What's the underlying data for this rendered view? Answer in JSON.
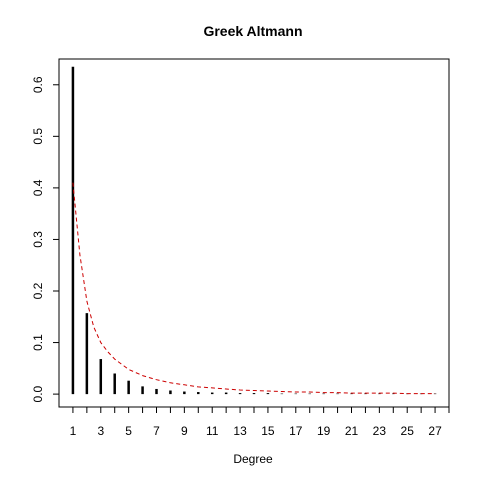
{
  "chart_data": {
    "type": "bar",
    "title": "Greek Altmann",
    "xlabel": "Degree",
    "ylabel": "",
    "xlim": [
      0,
      28
    ],
    "ylim": [
      -0.025,
      0.65
    ],
    "x_ticks": [
      1,
      2,
      3,
      4,
      5,
      6,
      7,
      8,
      9,
      10,
      11,
      12,
      13,
      14,
      15,
      16,
      17,
      18,
      19,
      20,
      21,
      22,
      23,
      24,
      25,
      26,
      27,
      28
    ],
    "x_tick_labels": [
      "1",
      "",
      "3",
      "",
      "5",
      "",
      "7",
      "",
      "9",
      "",
      "11",
      "",
      "13",
      "",
      "15",
      "",
      "17",
      "",
      "19",
      "",
      "21",
      "",
      "23",
      "",
      "25",
      "",
      "27",
      ""
    ],
    "y_ticks": [
      0.0,
      0.1,
      0.2,
      0.3,
      0.4,
      0.5,
      0.6
    ],
    "y_tick_labels": [
      "0.0",
      "0.1",
      "0.2",
      "0.3",
      "0.4",
      "0.5",
      "0.6"
    ],
    "grid": false,
    "legend": "none",
    "series": [
      {
        "kind": "bars",
        "color": "#000000",
        "x": [
          1,
          2,
          3,
          4,
          5,
          6,
          7,
          8,
          9,
          10,
          11,
          12,
          13,
          14,
          15,
          16,
          17,
          18,
          19,
          20,
          21,
          22,
          23,
          24,
          25,
          26,
          27
        ],
        "values": [
          0.635,
          0.157,
          0.068,
          0.04,
          0.026,
          0.015,
          0.01,
          0.007,
          0.005,
          0.004,
          0.003,
          0.003,
          0.002,
          0.002,
          0.002,
          0.001,
          0.001,
          0.001,
          0.001,
          0.001,
          0.001,
          0.001,
          0.001,
          0.001,
          0.001,
          0.001,
          0.001
        ]
      },
      {
        "kind": "dashed-line",
        "color": "#cc0000",
        "x": [
          1,
          1.5,
          2,
          2.5,
          3,
          3.5,
          4,
          5,
          6,
          7,
          8,
          9,
          10,
          11,
          12,
          13,
          14,
          15,
          16,
          17,
          18,
          19,
          20,
          21,
          22,
          23,
          24,
          25,
          26,
          27
        ],
        "values": [
          0.41,
          0.27,
          0.18,
          0.13,
          0.1,
          0.082,
          0.068,
          0.048,
          0.036,
          0.028,
          0.022,
          0.018,
          0.014,
          0.012,
          0.01,
          0.008,
          0.007,
          0.006,
          0.005,
          0.004,
          0.004,
          0.003,
          0.003,
          0.002,
          0.002,
          0.002,
          0.002,
          0.001,
          0.001,
          0.001
        ]
      }
    ]
  }
}
